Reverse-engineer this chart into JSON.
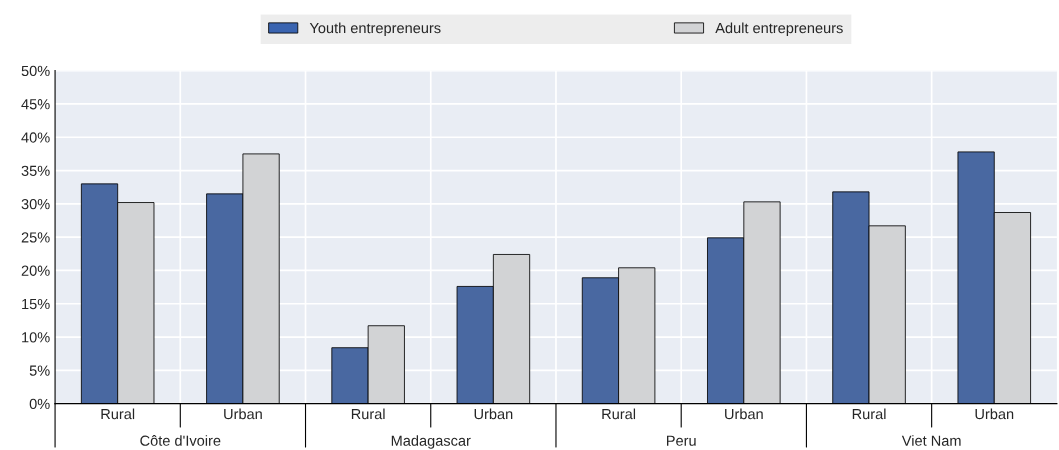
{
  "chart_data": {
    "type": "bar",
    "categories": [
      "Rural",
      "Urban",
      "Rural",
      "Urban",
      "Rural",
      "Urban",
      "Rural",
      "Urban"
    ],
    "series": [
      {
        "name": "Youth entrepreneurs",
        "color": "#3a64b0",
        "values": [
          33.0,
          31.5,
          8.4,
          17.6,
          18.9,
          24.9,
          31.8,
          37.8
        ]
      },
      {
        "name": "Adult entrepreneurs",
        "color": "#d2d3d5",
        "values": [
          30.2,
          37.5,
          11.7,
          22.4,
          20.4,
          30.3,
          26.7,
          28.7
        ]
      }
    ],
    "annotations": [
      "Côte d'Ivoire",
      "Madagascar",
      "Peru",
      "Viet Nam"
    ],
    "ylim": [
      0,
      50
    ],
    "yticks": [
      {
        "value": 0,
        "label": "0%"
      },
      {
        "value": 5,
        "label": "5%"
      },
      {
        "value": 10,
        "label": "10%"
      },
      {
        "value": 15,
        "label": "15%"
      },
      {
        "value": 20,
        "label": "20%"
      },
      {
        "value": 25,
        "label": "25%"
      },
      {
        "value": 30,
        "label": "30%"
      },
      {
        "value": 35,
        "label": "35%"
      },
      {
        "value": 40,
        "label": "40%"
      },
      {
        "value": 45,
        "label": "45%"
      },
      {
        "value": 50,
        "label": "50%"
      }
    ],
    "grid": "y",
    "legend": "top"
  }
}
